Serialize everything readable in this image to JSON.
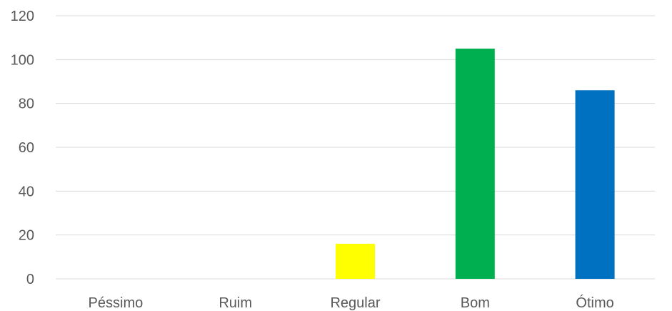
{
  "chart_data": {
    "type": "bar",
    "categories": [
      "Péssimo",
      "Ruim",
      "Regular",
      "Bom",
      "Ótimo"
    ],
    "values": [
      0,
      0,
      16,
      105,
      86
    ],
    "bar_colors": [
      "#4472c4",
      "#c00000",
      "#ffff00",
      "#00b050",
      "#0070c0"
    ],
    "title": "",
    "xlabel": "",
    "ylabel": "",
    "ylim": [
      0,
      120
    ],
    "yticks": [
      0,
      20,
      40,
      60,
      80,
      100,
      120
    ],
    "grid": true,
    "legend": "none",
    "gridline_color": "#d9d9d9",
    "tick_label_color": "#595959"
  }
}
